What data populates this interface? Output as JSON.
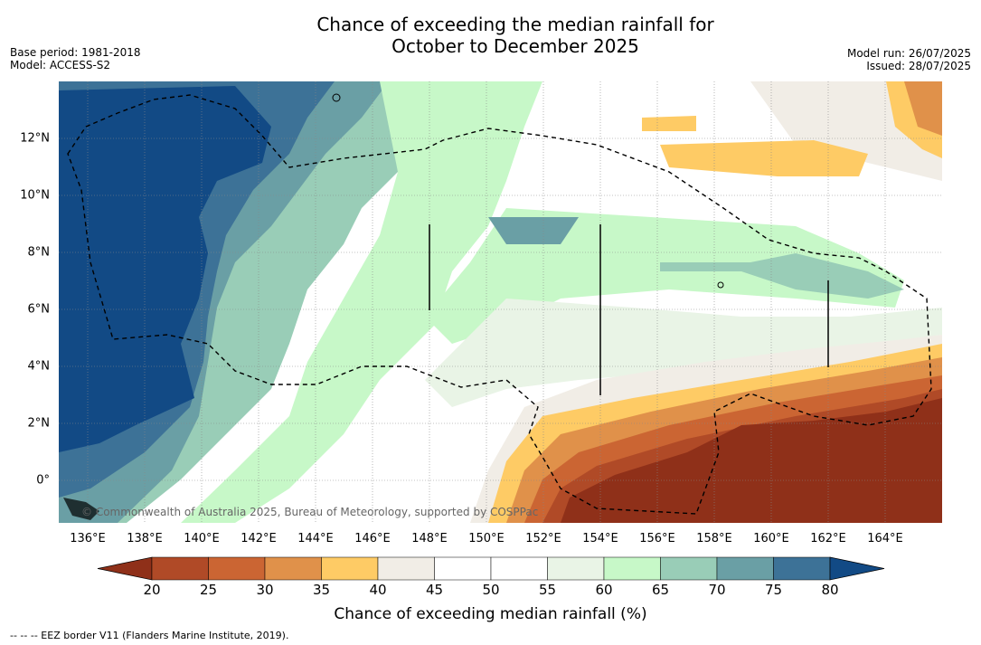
{
  "title_line1": "Chance of exceeding the median rainfall for",
  "title_line2": "October to December 2025",
  "base_period": "Base period: 1981-2018",
  "model": "Model: ACCESS-S2",
  "model_run": "Model run: 26/07/2025",
  "issued": "Issued: 28/07/2025",
  "copyright": "© Commonwealth of Australia 2025, Bureau of Meteorology, supported by COSPPac",
  "x_ticks": [
    "136°E",
    "138°E",
    "140°E",
    "142°E",
    "144°E",
    "146°E",
    "148°E",
    "150°E",
    "152°E",
    "154°E",
    "156°E",
    "158°E",
    "160°E",
    "162°E",
    "164°E"
  ],
  "y_ticks": [
    "12°N",
    "10°N",
    "8°N",
    "6°N",
    "4°N",
    "2°N",
    "0°"
  ],
  "colorbar": {
    "title": "Chance of exceeding median rainfall (%)",
    "labels": [
      "20",
      "25",
      "30",
      "35",
      "40",
      "45",
      "50",
      "55",
      "60",
      "65",
      "70",
      "75",
      "80"
    ],
    "colors": [
      "#8f3019",
      "#b04a27",
      "#cb6533",
      "#e0914a",
      "#fecb65",
      "#f1ede6",
      "#ffffff",
      "#ffffff",
      "#e9f4e6",
      "#c7f8c8",
      "#99cdb7",
      "#6a9fa5",
      "#3d7297",
      "#124a85"
    ]
  },
  "footnote": "-- -- -- EEZ border V11 (Flanders Marine Institute, 2019)."
}
